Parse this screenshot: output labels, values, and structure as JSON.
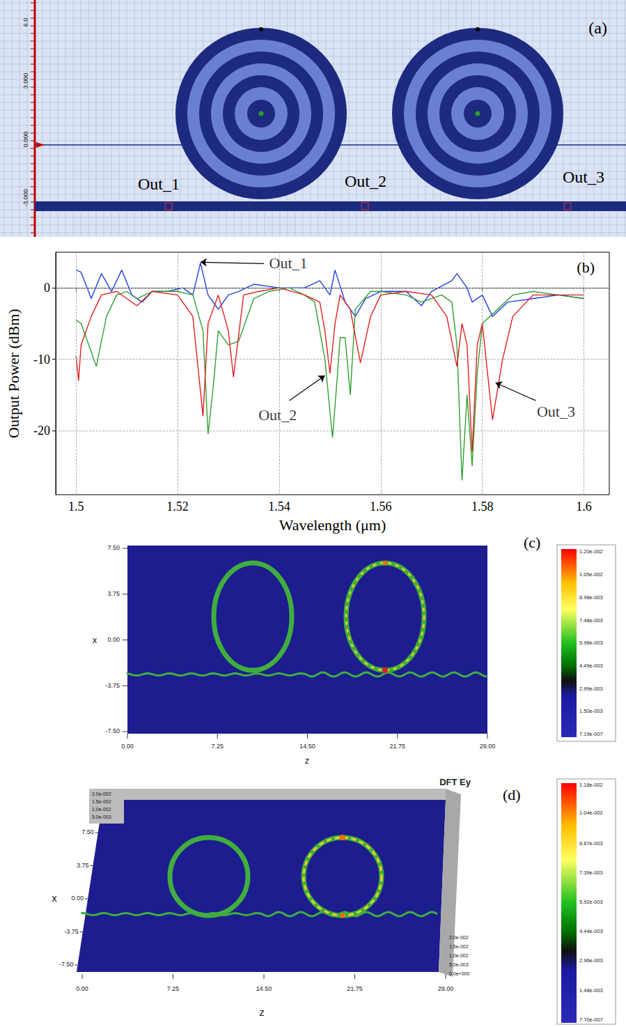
{
  "panel_a": {
    "letter": "(a)",
    "ruler_ticks": [
      {
        "value": 6,
        "label": "6.0"
      },
      {
        "value": 3,
        "label": "3.000"
      },
      {
        "value": 0,
        "label": "0.000"
      },
      {
        "value": -3,
        "label": "-3.000"
      }
    ],
    "ports": [
      "Out_1",
      "Out_2",
      "Out_3"
    ]
  },
  "chart_data": {
    "letter": "(b)",
    "type": "line",
    "x_label": "Wavelength (μm)",
    "y_label": "Output Power (dBm)",
    "xlim": [
      1.496,
      1.605
    ],
    "xticks": [
      1.5,
      1.52,
      1.54,
      1.56,
      1.58,
      1.6
    ],
    "ylim": [
      -29,
      5
    ],
    "yticks": [
      -20,
      -10,
      0
    ],
    "grid": true,
    "series": [
      {
        "name": "Out_1",
        "color": "#2040e0",
        "x": [
          1.5,
          1.501,
          1.503,
          1.505,
          1.507,
          1.509,
          1.511,
          1.513,
          1.515,
          1.518,
          1.521,
          1.523,
          1.5245,
          1.526,
          1.528,
          1.53,
          1.532,
          1.535,
          1.54,
          1.545,
          1.548,
          1.55,
          1.551,
          1.553,
          1.555,
          1.557,
          1.56,
          1.565,
          1.568,
          1.57,
          1.574,
          1.575,
          1.577,
          1.578,
          1.58,
          1.582,
          1.585,
          1.59,
          1.595,
          1.6
        ],
        "values": [
          2.5,
          2.2,
          -1.5,
          2,
          -0.5,
          2.5,
          -1,
          -2,
          -0.5,
          -0.5,
          0,
          -1,
          3.5,
          -1,
          -3,
          -1,
          -0.5,
          0.5,
          0,
          0,
          1,
          -1,
          2.5,
          -2,
          -4,
          -1.5,
          -0.5,
          -0.5,
          -2.5,
          -0.5,
          1,
          2,
          0,
          -2,
          -1,
          -4,
          -2,
          -1.5,
          -1,
          -1.5
        ],
        "label_at": [
          1.5418,
          3.5
        ],
        "arrow_from": [
          1.537,
          3.4
        ],
        "arrow_to": [
          1.5245,
          3.6
        ]
      },
      {
        "name": "Out_2",
        "color": "#30a030",
        "x": [
          1.5,
          1.501,
          1.503,
          1.504,
          1.506,
          1.508,
          1.51,
          1.512,
          1.515,
          1.52,
          1.523,
          1.525,
          1.526,
          1.527,
          1.528,
          1.53,
          1.532,
          1.535,
          1.538,
          1.542,
          1.545,
          1.547,
          1.549,
          1.5505,
          1.5515,
          1.552,
          1.553,
          1.554,
          1.555,
          1.558,
          1.56,
          1.565,
          1.568,
          1.572,
          1.574,
          1.575,
          1.576,
          1.577,
          1.578,
          1.579,
          1.58,
          1.583,
          1.586,
          1.59,
          1.595,
          1.6
        ],
        "values": [
          -4.5,
          -5,
          -9,
          -11,
          -4,
          -1,
          -0.5,
          -1.5,
          -0.5,
          -0.5,
          -1,
          -6,
          -20.5,
          -14,
          -6,
          -8,
          -7.5,
          -1.5,
          -0.5,
          0,
          -1,
          -2,
          -10,
          -21,
          -12,
          -7,
          -7,
          -15,
          -3,
          -0.5,
          -0.5,
          -1,
          -2,
          -1,
          -2,
          -8,
          -27,
          -15,
          -25,
          -12,
          -5,
          -3,
          -1,
          -0.5,
          -1,
          -1.5
        ],
        "label_at": [
          1.5397,
          -17.8
        ],
        "arrow_from": [
          1.542,
          -15.8
        ],
        "arrow_to": [
          1.549,
          -12.3
        ]
      },
      {
        "name": "Out_3",
        "color": "#e02020",
        "x": [
          1.5,
          1.5005,
          1.501,
          1.503,
          1.505,
          1.508,
          1.512,
          1.515,
          1.52,
          1.523,
          1.525,
          1.526,
          1.528,
          1.53,
          1.531,
          1.533,
          1.536,
          1.54,
          1.545,
          1.548,
          1.549,
          1.55,
          1.551,
          1.552,
          1.554,
          1.556,
          1.558,
          1.56,
          1.565,
          1.57,
          1.573,
          1.575,
          1.576,
          1.577,
          1.578,
          1.579,
          1.58,
          1.582,
          1.584,
          1.586,
          1.59,
          1.595,
          1.6
        ],
        "values": [
          -9.5,
          -13,
          -8,
          -4,
          -1,
          -0.5,
          -2.5,
          -0.5,
          -1,
          -4,
          -18,
          -5,
          -1,
          -6,
          -12.5,
          -1,
          -0.5,
          0,
          -1,
          -2,
          -6,
          -12,
          -5,
          -1,
          -3,
          -10.5,
          -4,
          -1,
          -0.5,
          -1,
          -4,
          -11,
          -5,
          -8,
          -23,
          -8,
          -5,
          -18.5,
          -10,
          -4,
          -1,
          -1,
          -1
        ],
        "label_at": [
          1.5945,
          -17.3
        ],
        "arrow_from": [
          1.5905,
          -15.8
        ],
        "arrow_to": [
          1.5826,
          -13.3
        ]
      }
    ]
  },
  "panel_c": {
    "letter": "(c)",
    "x_label": "x",
    "z_label": "z",
    "x_ticks": [
      {
        "value": 7.5,
        "label": "7.50"
      },
      {
        "value": 3.75,
        "label": "3.75"
      },
      {
        "value": 0,
        "label": "0.00"
      },
      {
        "value": -3.75,
        "label": "-3.75"
      },
      {
        "value": -7.5,
        "label": "-7.50"
      }
    ],
    "z_ticks": [
      {
        "value": 0,
        "label": "0.00"
      },
      {
        "value": 7.25,
        "label": "7.25"
      },
      {
        "value": 14.5,
        "label": "14.50"
      },
      {
        "value": 21.75,
        "label": "21.75"
      },
      {
        "value": 29,
        "label": "29.00"
      }
    ],
    "colorbar_ticks": [
      {
        "value": 0.012,
        "label": "1.20e-002"
      },
      {
        "value": 0.0105,
        "label": "1.05e-002"
      },
      {
        "value": 0.00898,
        "label": "8.98e-003"
      },
      {
        "value": 0.00748,
        "label": "7.48e-003"
      },
      {
        "value": 0.00598,
        "label": "5.98e-003"
      },
      {
        "value": 0.00449,
        "label": "4.49e-003"
      },
      {
        "value": 0.00299,
        "label": "2.99e-003"
      },
      {
        "value": 0.0015,
        "label": "1.50e-003"
      },
      {
        "value": 7.19e-07,
        "label": "7.19e-007"
      }
    ]
  },
  "panel_d": {
    "letter": "(d)",
    "title": "DFT Ey",
    "x_label": "x",
    "z_label": "z",
    "x_ticks": [
      {
        "value": 7.5,
        "label": "7.50"
      },
      {
        "value": 3.75,
        "label": "3.75"
      },
      {
        "value": 0,
        "label": "0.00"
      },
      {
        "value": -3.75,
        "label": "-3.75"
      },
      {
        "value": -7.5,
        "label": "-7.50"
      }
    ],
    "z_ticks": [
      {
        "value": 0,
        "label": "0.00"
      },
      {
        "value": 7.25,
        "label": "7.25"
      },
      {
        "value": 14.5,
        "label": "14.50"
      },
      {
        "value": 21.75,
        "label": "21.75"
      },
      {
        "value": 29,
        "label": "29.00"
      }
    ],
    "height_ticks_back": [
      {
        "value": 0.02,
        "label": "2.0e-002"
      },
      {
        "value": 0.015,
        "label": "1.5e-002"
      },
      {
        "value": 0.01,
        "label": "1.0e-002"
      },
      {
        "value": 0.005,
        "label": "5.0e-003"
      }
    ],
    "height_ticks_side": [
      {
        "value": 0.02,
        "label": "2.0e-002"
      },
      {
        "value": 0.015,
        "label": "1.5e-002"
      },
      {
        "value": 0.01,
        "label": "1.0e-002"
      },
      {
        "value": 0.005,
        "label": "5.0e-003"
      },
      {
        "value": 0,
        "label": "0.0e+000"
      }
    ],
    "colorbar_ticks": [
      {
        "value": 0.0118,
        "label": "1.18e-002"
      },
      {
        "value": 0.0104,
        "label": "1.04e-002"
      },
      {
        "value": 0.00887,
        "label": "8.87e-003"
      },
      {
        "value": 0.00739,
        "label": "7.39e-003"
      },
      {
        "value": 0.00592,
        "label": "5.92e-003"
      },
      {
        "value": 0.00444,
        "label": "4.44e-003"
      },
      {
        "value": 0.00296,
        "label": "2.96e-003"
      },
      {
        "value": 0.00148,
        "label": "1.48e-003"
      },
      {
        "value": 7.7e-07,
        "label": "7.70e-007"
      }
    ]
  }
}
